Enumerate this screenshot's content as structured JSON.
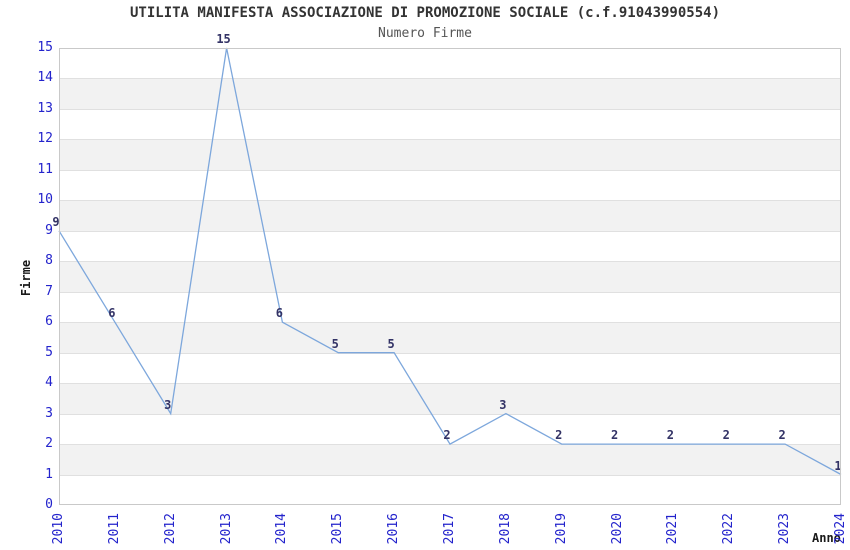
{
  "chart_data": {
    "type": "line",
    "title": "UTILITA MANIFESTA ASSOCIAZIONE DI PROMOZIONE SOCIALE (c.f.91043990554)",
    "subtitle": "Numero Firme",
    "xlabel": "Anno",
    "ylabel": "Firme",
    "categories": [
      "2010",
      "2011",
      "2012",
      "2013",
      "2014",
      "2015",
      "2016",
      "2017",
      "2018",
      "2019",
      "2020",
      "2021",
      "2022",
      "2023",
      "2024"
    ],
    "values": [
      9,
      6,
      3,
      15,
      6,
      5,
      5,
      2,
      3,
      2,
      2,
      2,
      2,
      2,
      1
    ],
    "ylim": [
      0,
      15
    ],
    "ytick_step": 1,
    "grid": true,
    "legend": false,
    "show_point_labels": true,
    "colors": {
      "line": "#7da7dc",
      "tick_label": "#2323cc",
      "point_label": "#333366",
      "band": "#f2f2f2",
      "gridline": "#e0e0e0",
      "frame": "#c9c9c9",
      "title": "#333333",
      "subtitle": "#555555",
      "axis_label": "#1a1a1a"
    }
  }
}
